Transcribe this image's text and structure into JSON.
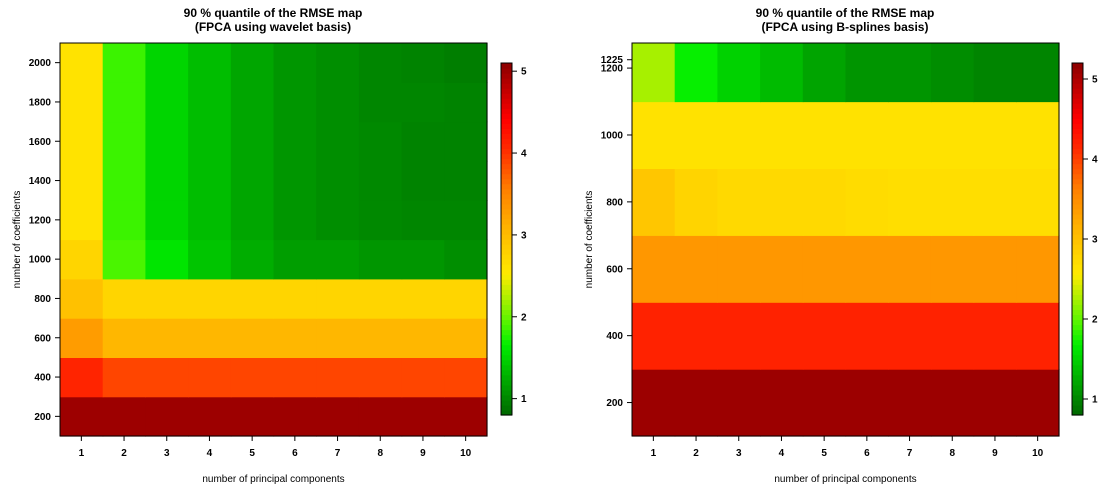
{
  "chart_data": [
    {
      "type": "heatmap",
      "title": "90 % quantile of the RMSE map",
      "subtitle": "(FPCA using wavelet basis)",
      "xlabel": "number of principal components",
      "ylabel": "number of coefficients",
      "x": [
        1,
        2,
        3,
        4,
        5,
        6,
        7,
        8,
        9,
        10
      ],
      "x_ticks": [
        "1",
        "2",
        "3",
        "4",
        "5",
        "6",
        "7",
        "8",
        "9",
        "10"
      ],
      "x_range": [
        0.5,
        10.5
      ],
      "y_rows": [
        {
          "from": 100,
          "to": 300
        },
        {
          "from": 300,
          "to": 500
        },
        {
          "from": 500,
          "to": 700
        },
        {
          "from": 700,
          "to": 900
        },
        {
          "from": 900,
          "to": 1100
        },
        {
          "from": 1100,
          "to": 1300
        },
        {
          "from": 1300,
          "to": 1500
        },
        {
          "from": 1500,
          "to": 1700
        },
        {
          "from": 1700,
          "to": 1900
        },
        {
          "from": 1900,
          "to": 2100
        }
      ],
      "y_range": [
        100,
        2100
      ],
      "y_ticks": [
        "200",
        "400",
        "600",
        "800",
        "1000",
        "1200",
        "1400",
        "1600",
        "1800",
        "2000"
      ],
      "y_tick_values": [
        200,
        400,
        600,
        800,
        1000,
        1200,
        1400,
        1600,
        1800,
        2000
      ],
      "values": [
        [
          5.0,
          5.0,
          5.0,
          5.0,
          5.0,
          5.0,
          5.0,
          5.0,
          5.0,
          5.0
        ],
        [
          4.1,
          3.9,
          3.9,
          3.9,
          3.9,
          3.9,
          3.9,
          3.9,
          3.9,
          3.9
        ],
        [
          3.3,
          3.05,
          3.05,
          3.05,
          3.05,
          3.05,
          3.05,
          3.05,
          3.05,
          3.05
        ],
        [
          2.95,
          2.75,
          2.75,
          2.75,
          2.75,
          2.75,
          2.75,
          2.75,
          2.75,
          2.75
        ],
        [
          2.75,
          1.9,
          1.6,
          1.4,
          1.25,
          1.15,
          1.15,
          1.1,
          1.1,
          1.05
        ],
        [
          2.6,
          1.85,
          1.5,
          1.35,
          1.2,
          1.1,
          1.05,
          1.02,
          1.0,
          1.0
        ],
        [
          2.6,
          1.85,
          1.5,
          1.35,
          1.2,
          1.1,
          1.05,
          1.02,
          0.98,
          0.98
        ],
        [
          2.6,
          1.85,
          1.5,
          1.35,
          1.2,
          1.1,
          1.05,
          1.02,
          0.98,
          0.98
        ],
        [
          2.6,
          1.85,
          1.5,
          1.35,
          1.2,
          1.1,
          1.05,
          1.0,
          1.0,
          0.98
        ],
        [
          2.6,
          1.85,
          1.5,
          1.35,
          1.2,
          1.1,
          1.05,
          1.0,
          0.98,
          0.95
        ]
      ],
      "colorbar": {
        "range": [
          0.8,
          5.1
        ],
        "ticks": [
          "1",
          "2",
          "3",
          "4",
          "5"
        ],
        "tick_values": [
          1,
          2,
          3,
          4,
          5
        ]
      }
    },
    {
      "type": "heatmap",
      "title": "90 % quantile of the RMSE map",
      "subtitle": "(FPCA using B-splines basis)",
      "xlabel": "number of principal components",
      "ylabel": "number of coefficients",
      "x": [
        1,
        2,
        3,
        4,
        5,
        6,
        7,
        8,
        9,
        10
      ],
      "x_ticks": [
        "1",
        "2",
        "3",
        "4",
        "5",
        "6",
        "7",
        "8",
        "9",
        "10"
      ],
      "x_range": [
        0.5,
        10.5
      ],
      "y_rows": [
        {
          "from": 100,
          "to": 300
        },
        {
          "from": 300,
          "to": 500
        },
        {
          "from": 500,
          "to": 700
        },
        {
          "from": 700,
          "to": 900
        },
        {
          "from": 900,
          "to": 1100
        },
        {
          "from": 1100,
          "to": 1275
        }
      ],
      "y_range": [
        100,
        1275
      ],
      "y_ticks": [
        "200",
        "400",
        "600",
        "800",
        "1000",
        "1200",
        "1225"
      ],
      "y_tick_values": [
        200,
        400,
        600,
        800,
        1000,
        1200,
        1225
      ],
      "values": [
        [
          5.1,
          5.1,
          5.1,
          5.1,
          5.1,
          5.1,
          5.1,
          5.1,
          5.1,
          5.1
        ],
        [
          4.2,
          4.2,
          4.2,
          4.2,
          4.2,
          4.2,
          4.2,
          4.2,
          4.2,
          4.2
        ],
        [
          3.4,
          3.4,
          3.4,
          3.4,
          3.4,
          3.4,
          3.4,
          3.4,
          3.4,
          3.4
        ],
        [
          2.95,
          2.8,
          2.75,
          2.75,
          2.75,
          2.72,
          2.7,
          2.7,
          2.7,
          2.7
        ],
        [
          2.65,
          2.65,
          2.65,
          2.65,
          2.65,
          2.65,
          2.65,
          2.65,
          2.65,
          2.65
        ],
        [
          2.25,
          1.7,
          1.5,
          1.35,
          1.2,
          1.1,
          1.1,
          1.05,
          1.0,
          1.0
        ]
      ],
      "colorbar": {
        "range": [
          0.8,
          5.2
        ],
        "ticks": [
          "1",
          "2",
          "3",
          "4",
          "5"
        ],
        "tick_values": [
          1,
          2,
          3,
          4,
          5
        ]
      }
    }
  ]
}
